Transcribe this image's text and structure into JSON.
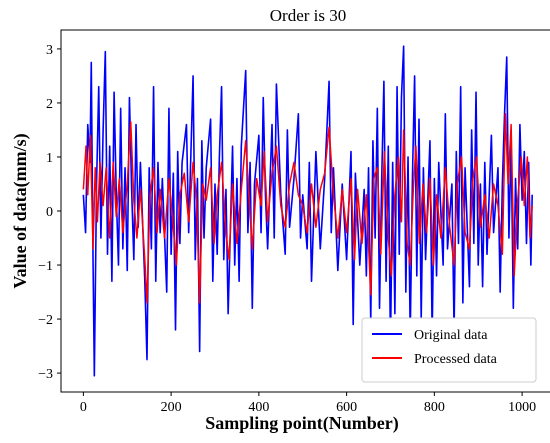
{
  "chart_data": {
    "type": "line",
    "title": "Order is 30",
    "xlabel": "Sampling point(Number)",
    "ylabel": "Value of data(mm/s)",
    "xlim": [
      -51,
      1075
    ],
    "ylim": [
      -3.35,
      3.35
    ],
    "xticks": [
      0,
      200,
      400,
      600,
      800,
      1000
    ],
    "yticks": [
      -3,
      -2,
      -1,
      0,
      1,
      2,
      3
    ],
    "grid": false,
    "legend_position": "lower-right",
    "n_points": 1024,
    "series": [
      {
        "name": "Original data",
        "color": "#0000ff",
        "anchors": [
          [
            0,
            0.3
          ],
          [
            5,
            -0.4
          ],
          [
            10,
            1.6
          ],
          [
            15,
            0.9
          ],
          [
            18,
            2.75
          ],
          [
            22,
            -0.9
          ],
          [
            25,
            -3.05
          ],
          [
            30,
            0.5
          ],
          [
            35,
            2.3
          ],
          [
            40,
            -0.5
          ],
          [
            45,
            1.5
          ],
          [
            50,
            2.95
          ],
          [
            55,
            -0.8
          ],
          [
            60,
            1.2
          ],
          [
            65,
            -1.3
          ],
          [
            70,
            2.2
          ],
          [
            75,
            0.3
          ],
          [
            80,
            -1.0
          ],
          [
            85,
            1.9
          ],
          [
            90,
            -0.7
          ],
          [
            95,
            0.8
          ],
          [
            100,
            -1.1
          ],
          [
            105,
            2.1
          ],
          [
            110,
            0.4
          ],
          [
            115,
            -0.9
          ],
          [
            120,
            1.6
          ],
          [
            125,
            -0.3
          ],
          [
            130,
            0.9
          ],
          [
            140,
            -1.3
          ],
          [
            145,
            -2.75
          ],
          [
            150,
            0.8
          ],
          [
            155,
            -0.7
          ],
          [
            160,
            2.3
          ],
          [
            165,
            -1.3
          ],
          [
            170,
            0.9
          ],
          [
            175,
            -0.4
          ],
          [
            180,
            0.6
          ],
          [
            190,
            -1.5
          ],
          [
            195,
            1.9
          ],
          [
            200,
            -0.8
          ],
          [
            205,
            0.7
          ],
          [
            210,
            -2.2
          ],
          [
            215,
            1.1
          ],
          [
            220,
            -0.6
          ],
          [
            225,
            0.9
          ],
          [
            235,
            1.6
          ],
          [
            240,
            -0.4
          ],
          [
            250,
            2.5
          ],
          [
            255,
            -0.9
          ],
          [
            260,
            0.6
          ],
          [
            265,
            -2.6
          ],
          [
            270,
            1.3
          ],
          [
            275,
            -0.5
          ],
          [
            280,
            0.8
          ],
          [
            290,
            1.7
          ],
          [
            295,
            -1.3
          ],
          [
            300,
            0.5
          ],
          [
            305,
            -0.8
          ],
          [
            310,
            1.0
          ],
          [
            315,
            2.3
          ],
          [
            320,
            -0.9
          ],
          [
            325,
            0.4
          ],
          [
            330,
            -1.9
          ],
          [
            340,
            1.2
          ],
          [
            345,
            -1.0
          ],
          [
            350,
            0.6
          ],
          [
            355,
            -1.3
          ],
          [
            360,
            1.2
          ],
          [
            370,
            2.6
          ],
          [
            375,
            -0.4
          ],
          [
            380,
            0.9
          ],
          [
            385,
            -1.8
          ],
          [
            390,
            0.5
          ],
          [
            400,
            1.4
          ],
          [
            405,
            -0.4
          ],
          [
            410,
            2.1
          ],
          [
            415,
            0.3
          ],
          [
            420,
            -0.7
          ],
          [
            430,
            1.6
          ],
          [
            435,
            -0.5
          ],
          [
            440,
            2.35
          ],
          [
            450,
            0.3
          ],
          [
            460,
            -0.8
          ],
          [
            465,
            1.5
          ],
          [
            470,
            -0.3
          ],
          [
            480,
            0.6
          ],
          [
            490,
            1.8
          ],
          [
            495,
            -0.5
          ],
          [
            500,
            0.3
          ],
          [
            510,
            -0.7
          ],
          [
            515,
            0.9
          ],
          [
            520,
            -1.3
          ],
          [
            530,
            1.1
          ],
          [
            540,
            -0.7
          ],
          [
            550,
            0.6
          ],
          [
            560,
            2.4
          ],
          [
            565,
            -0.4
          ],
          [
            570,
            0.8
          ],
          [
            580,
            -1.1
          ],
          [
            590,
            0.5
          ],
          [
            600,
            -0.9
          ],
          [
            610,
            1.1
          ],
          [
            615,
            -2.1
          ],
          [
            620,
            0.7
          ],
          [
            630,
            -1.0
          ],
          [
            640,
            0.4
          ],
          [
            645,
            -1.2
          ],
          [
            650,
            0.8
          ],
          [
            655,
            -2.05
          ],
          [
            660,
            1.3
          ],
          [
            665,
            -0.5
          ],
          [
            670,
            1.9
          ],
          [
            675,
            -1.8
          ],
          [
            680,
            0.6
          ],
          [
            685,
            2.4
          ],
          [
            690,
            -1.3
          ],
          [
            695,
            1.2
          ],
          [
            700,
            -2.5
          ],
          [
            705,
            0.9
          ],
          [
            710,
            -1.9
          ],
          [
            715,
            2.3
          ],
          [
            720,
            -0.8
          ],
          [
            725,
            2.1
          ],
          [
            730,
            3.05
          ],
          [
            735,
            -1.5
          ],
          [
            740,
            1.0
          ],
          [
            745,
            -2.3
          ],
          [
            750,
            0.6
          ],
          [
            755,
            2.5
          ],
          [
            760,
            -1.2
          ],
          [
            765,
            1.7
          ],
          [
            770,
            -2.0
          ],
          [
            775,
            0.8
          ],
          [
            780,
            -0.9
          ],
          [
            790,
            1.3
          ],
          [
            795,
            -2.3
          ],
          [
            800,
            0.6
          ],
          [
            805,
            -1.2
          ],
          [
            810,
            0.9
          ],
          [
            820,
            -1.0
          ],
          [
            825,
            1.8
          ],
          [
            830,
            -0.7
          ],
          [
            840,
            0.5
          ],
          [
            845,
            -2.2
          ],
          [
            850,
            1.1
          ],
          [
            855,
            -0.6
          ],
          [
            860,
            2.3
          ],
          [
            865,
            -1.7
          ],
          [
            870,
            0.8
          ],
          [
            880,
            -1.4
          ],
          [
            885,
            1.5
          ],
          [
            890,
            -0.6
          ],
          [
            895,
            2.2
          ],
          [
            900,
            -1.0
          ],
          [
            905,
            0.5
          ],
          [
            910,
            -1.4
          ],
          [
            915,
            0.9
          ],
          [
            920,
            -0.8
          ],
          [
            930,
            1.4
          ],
          [
            935,
            -0.4
          ],
          [
            945,
            0.8
          ],
          [
            950,
            -1.5
          ],
          [
            955,
            0.5
          ],
          [
            960,
            1.8
          ],
          [
            965,
            2.85
          ],
          [
            970,
            -0.5
          ],
          [
            975,
            1.3
          ],
          [
            980,
            -1.8
          ],
          [
            985,
            0.6
          ],
          [
            990,
            -0.7
          ],
          [
            995,
            1.6
          ],
          [
            1000,
            0.2
          ],
          [
            1005,
            1.1
          ],
          [
            1010,
            -0.6
          ],
          [
            1015,
            0.9
          ],
          [
            1020,
            -1.0
          ],
          [
            1023,
            0.3
          ]
        ]
      },
      {
        "name": "Processed data",
        "color": "#ff0000",
        "anchors": [
          [
            0,
            0.4
          ],
          [
            6,
            1.2
          ],
          [
            10,
            0.3
          ],
          [
            16,
            1.4
          ],
          [
            22,
            -0.7
          ],
          [
            27,
            0.8
          ],
          [
            32,
            -0.2
          ],
          [
            38,
            0.9
          ],
          [
            45,
            0.1
          ],
          [
            52,
            0.8
          ],
          [
            60,
            -0.5
          ],
          [
            68,
            0.9
          ],
          [
            75,
            -0.1
          ],
          [
            82,
            0.6
          ],
          [
            90,
            -0.4
          ],
          [
            100,
            0.5
          ],
          [
            108,
            1.65
          ],
          [
            115,
            0.2
          ],
          [
            122,
            -0.5
          ],
          [
            130,
            0.4
          ],
          [
            140,
            -0.9
          ],
          [
            145,
            -1.7
          ],
          [
            152,
            0.3
          ],
          [
            160,
            0.8
          ],
          [
            168,
            -0.4
          ],
          [
            175,
            0.4
          ],
          [
            185,
            -0.5
          ],
          [
            195,
            0.6
          ],
          [
            205,
            -0.3
          ],
          [
            212,
            -1.0
          ],
          [
            220,
            0.3
          ],
          [
            230,
            0.7
          ],
          [
            240,
            -0.2
          ],
          [
            250,
            0.9
          ],
          [
            258,
            0.2
          ],
          [
            265,
            -1.7
          ],
          [
            272,
            0.5
          ],
          [
            280,
            0.2
          ],
          [
            290,
            0.8
          ],
          [
            298,
            -0.6
          ],
          [
            305,
            0.3
          ],
          [
            315,
            0.9
          ],
          [
            325,
            -0.4
          ],
          [
            332,
            -0.9
          ],
          [
            340,
            0.5
          ],
          [
            350,
            -0.6
          ],
          [
            360,
            0.4
          ],
          [
            370,
            1.3
          ],
          [
            378,
            0.2
          ],
          [
            385,
            -0.7
          ],
          [
            395,
            0.6
          ],
          [
            405,
            0.1
          ],
          [
            412,
            1.1
          ],
          [
            420,
            -0.2
          ],
          [
            430,
            0.7
          ],
          [
            440,
            1.2
          ],
          [
            450,
            0.1
          ],
          [
            460,
            -0.3
          ],
          [
            470,
            0.5
          ],
          [
            480,
            0.9
          ],
          [
            490,
            0.3
          ],
          [
            500,
            0.1
          ],
          [
            510,
            -0.4
          ],
          [
            520,
            0.5
          ],
          [
            530,
            -0.3
          ],
          [
            540,
            0.4
          ],
          [
            550,
            0.7
          ],
          [
            560,
            1.55
          ],
          [
            570,
            0.3
          ],
          [
            580,
            -0.5
          ],
          [
            590,
            0.4
          ],
          [
            600,
            -0.4
          ],
          [
            610,
            0.6
          ],
          [
            618,
            -0.9
          ],
          [
            625,
            0.4
          ],
          [
            635,
            -0.6
          ],
          [
            645,
            0.3
          ],
          [
            655,
            -1.55
          ],
          [
            662,
            0.6
          ],
          [
            670,
            0.8
          ],
          [
            678,
            -0.8
          ],
          [
            686,
            1.1
          ],
          [
            695,
            -0.5
          ],
          [
            702,
            -1.2
          ],
          [
            710,
            0.3
          ],
          [
            718,
            1.0
          ],
          [
            725,
            -0.2
          ],
          [
            730,
            1.5
          ],
          [
            738,
            -0.6
          ],
          [
            745,
            -1.0
          ],
          [
            752,
            0.4
          ],
          [
            758,
            1.2
          ],
          [
            766,
            -0.6
          ],
          [
            774,
            0.5
          ],
          [
            782,
            -0.4
          ],
          [
            790,
            0.6
          ],
          [
            798,
            -1.0
          ],
          [
            805,
            0.3
          ],
          [
            815,
            -0.5
          ],
          [
            825,
            0.8
          ],
          [
            835,
            -0.3
          ],
          [
            845,
            -1.0
          ],
          [
            852,
            0.5
          ],
          [
            862,
            1.0
          ],
          [
            870,
            -0.4
          ],
          [
            880,
            -0.7
          ],
          [
            888,
            0.6
          ],
          [
            896,
            1.0
          ],
          [
            905,
            -0.3
          ],
          [
            915,
            0.3
          ],
          [
            925,
            -0.5
          ],
          [
            935,
            0.5
          ],
          [
            945,
            0.1
          ],
          [
            955,
            -0.8
          ],
          [
            962,
            1.8
          ],
          [
            968,
            0.5
          ],
          [
            975,
            1.6
          ],
          [
            982,
            -1.2
          ],
          [
            990,
            0.2
          ],
          [
            998,
            1.0
          ],
          [
            1005,
            0.1
          ],
          [
            1012,
            1.0
          ],
          [
            1018,
            -0.5
          ],
          [
            1023,
            0.1
          ]
        ]
      }
    ]
  }
}
